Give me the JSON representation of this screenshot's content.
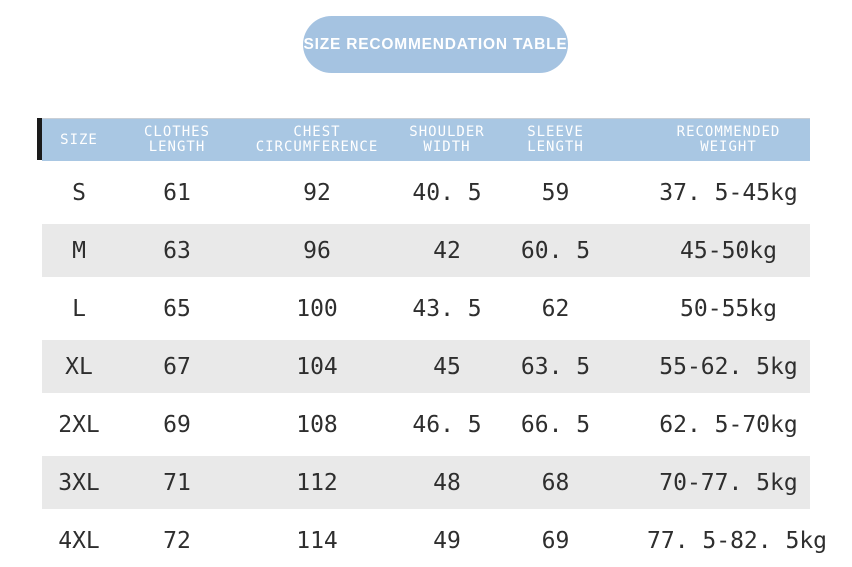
{
  "title": {
    "label": "SIZE RECOMMENDATION TABLE"
  },
  "colors": {
    "pill_bg": "#a5c3e1",
    "header_bg": "#a9c7e3",
    "row_alt_bg": "#e9e9e9",
    "accent_bar": "#1a1a1a",
    "header_text": "#ffffff",
    "body_text": "#2e2e2e"
  },
  "table": {
    "columns": [
      "SIZE",
      "CLOTHES\nLENGTH",
      "CHEST\nCIRCUMFERENCE",
      "SHOULDER\nWIDTH",
      "SLEEVE\nLENGTH",
      "RECOMMENDED\nWEIGHT"
    ],
    "rows": [
      [
        "S",
        "61",
        "92",
        "40. 5",
        "59",
        "37. 5-45kg"
      ],
      [
        "M",
        "63",
        "96",
        "42",
        "60. 5",
        "45-50kg"
      ],
      [
        "L",
        "65",
        "100",
        "43. 5",
        "62",
        "50-55kg"
      ],
      [
        "XL",
        "67",
        "104",
        "45",
        "63. 5",
        "55-62. 5kg"
      ],
      [
        "2XL",
        "69",
        "108",
        "46. 5",
        "66. 5",
        "62. 5-70kg"
      ],
      [
        "3XL",
        "71",
        "112",
        "48",
        "68",
        "70-77. 5kg"
      ],
      [
        "4XL",
        "72",
        "114",
        "49",
        "69",
        "77. 5-82. 5kg"
      ]
    ]
  },
  "chart_data": {
    "type": "table",
    "title": "SIZE RECOMMENDATION TABLE",
    "columns": [
      "SIZE",
      "CLOTHES LENGTH",
      "CHEST CIRCUMFERENCE",
      "SHOULDER WIDTH",
      "SLEEVE LENGTH",
      "RECOMMENDED WEIGHT"
    ],
    "rows": [
      {
        "size": "S",
        "clothes_length": 61,
        "chest_circumference": 92,
        "shoulder_width": 40.5,
        "sleeve_length": 59,
        "recommended_weight": "37.5-45kg"
      },
      {
        "size": "M",
        "clothes_length": 63,
        "chest_circumference": 96,
        "shoulder_width": 42,
        "sleeve_length": 60.5,
        "recommended_weight": "45-50kg"
      },
      {
        "size": "L",
        "clothes_length": 65,
        "chest_circumference": 100,
        "shoulder_width": 43.5,
        "sleeve_length": 62,
        "recommended_weight": "50-55kg"
      },
      {
        "size": "XL",
        "clothes_length": 67,
        "chest_circumference": 104,
        "shoulder_width": 45,
        "sleeve_length": 63.5,
        "recommended_weight": "55-62.5kg"
      },
      {
        "size": "2XL",
        "clothes_length": 69,
        "chest_circumference": 108,
        "shoulder_width": 46.5,
        "sleeve_length": 66.5,
        "recommended_weight": "62.5-70kg"
      },
      {
        "size": "3XL",
        "clothes_length": 71,
        "chest_circumference": 112,
        "shoulder_width": 48,
        "sleeve_length": 68,
        "recommended_weight": "70-77.5kg"
      },
      {
        "size": "4XL",
        "clothes_length": 72,
        "chest_circumference": 114,
        "shoulder_width": 49,
        "sleeve_length": 69,
        "recommended_weight": "77.5-82.5kg"
      }
    ]
  }
}
